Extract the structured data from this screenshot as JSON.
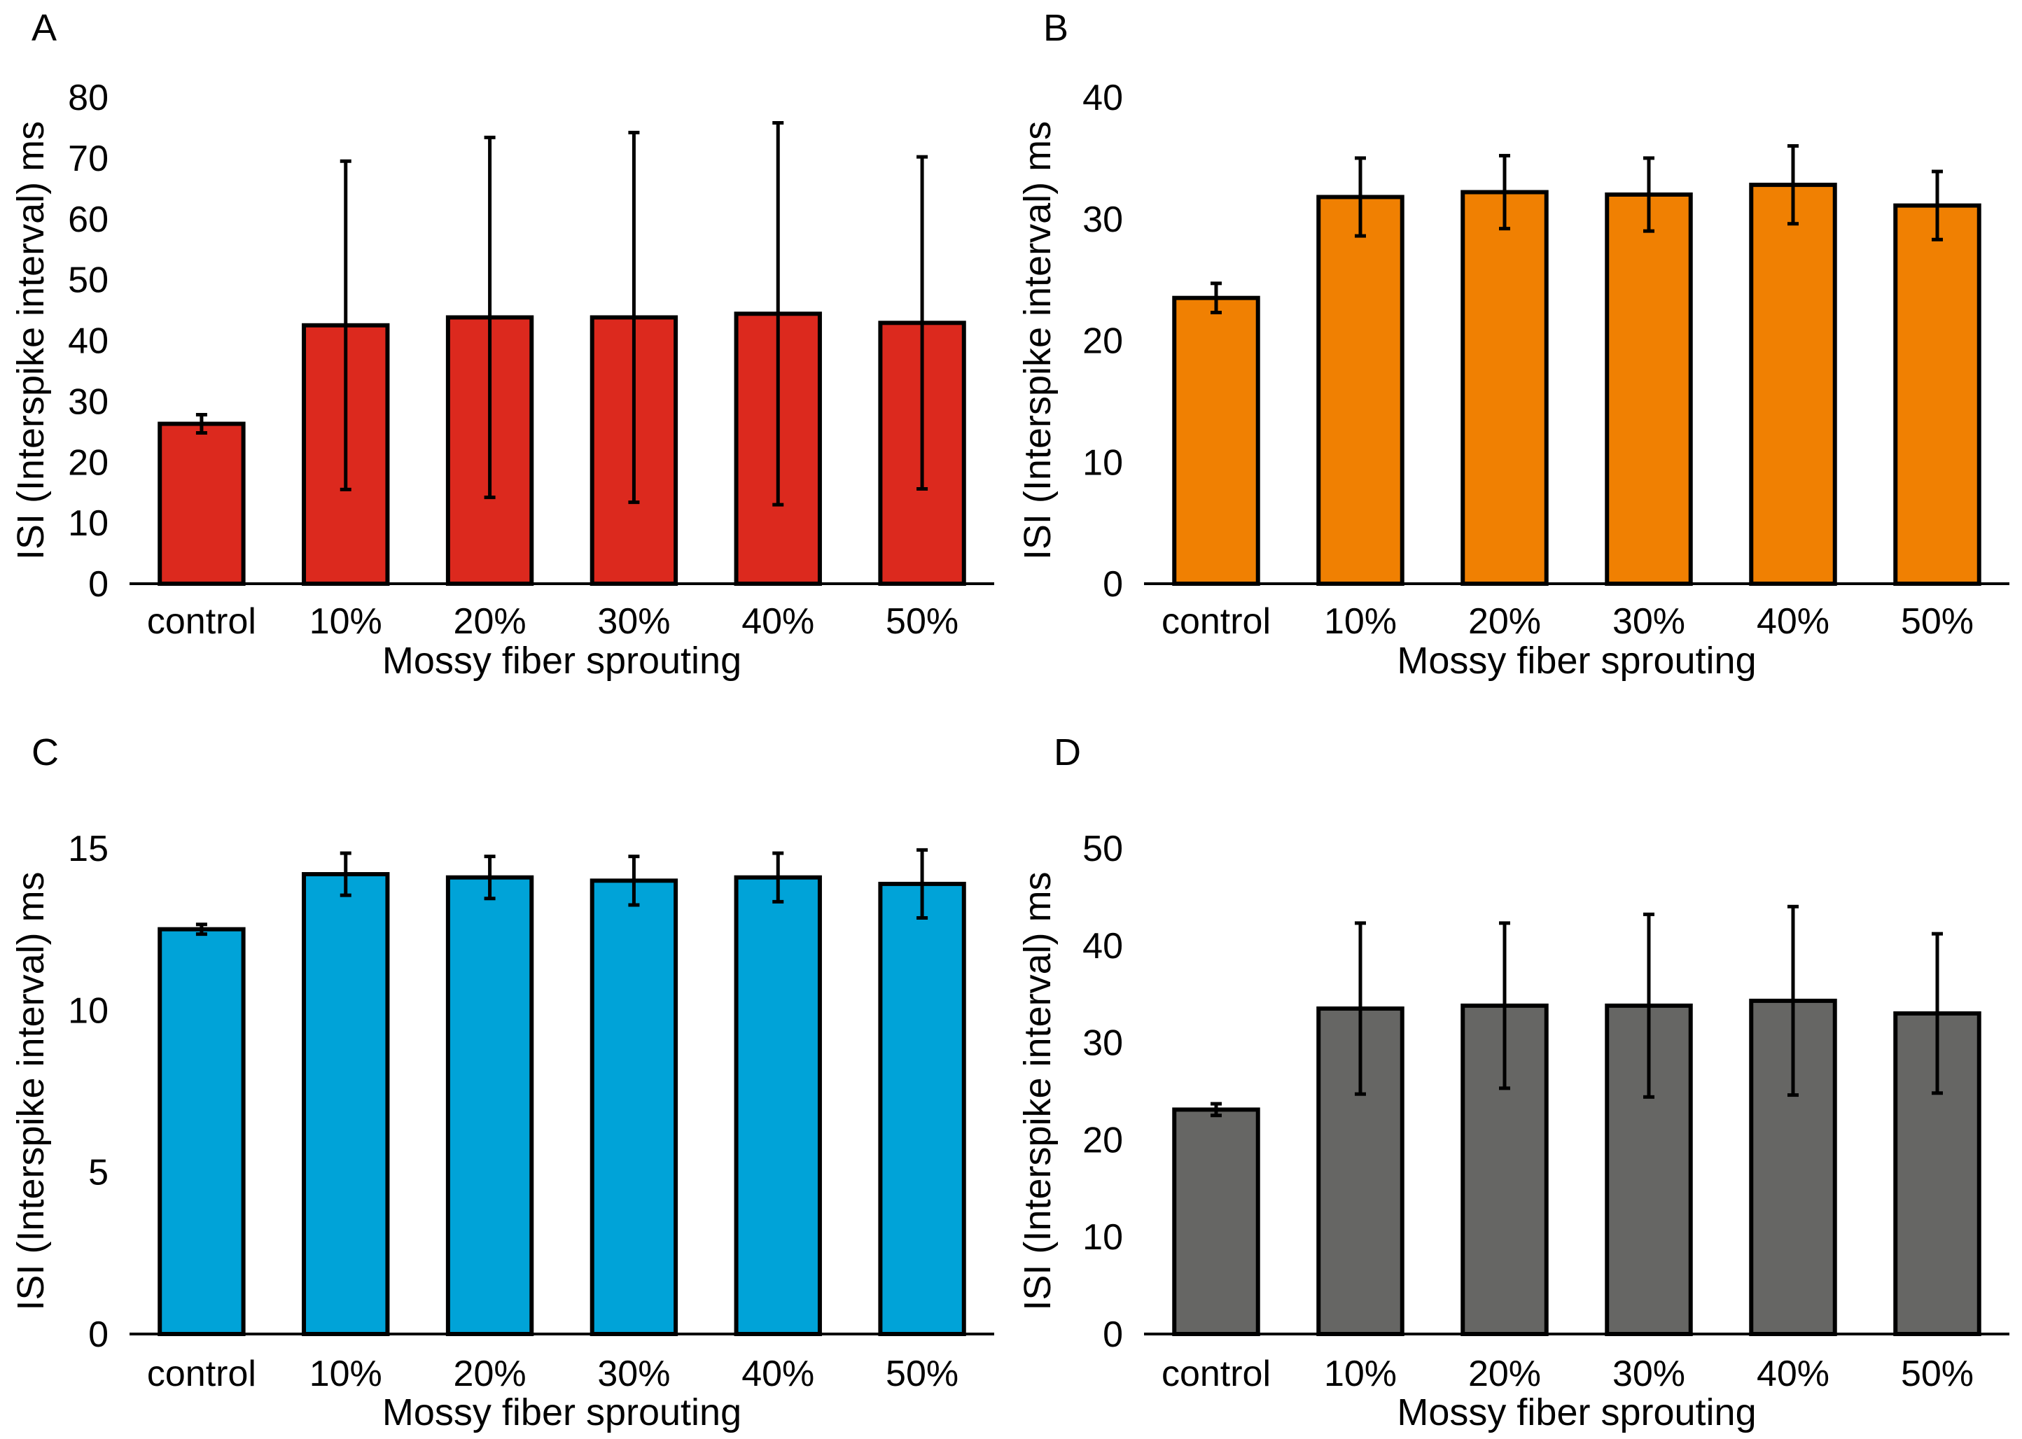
{
  "chart_data": [
    {
      "panel": "A",
      "type": "bar",
      "categories": [
        "control",
        "10%",
        "20%",
        "30%",
        "40%",
        "50%"
      ],
      "values": [
        26.3,
        42.5,
        43.8,
        43.8,
        44.4,
        42.9
      ],
      "errors": [
        1.5,
        27.0,
        29.6,
        30.4,
        31.4,
        27.3
      ],
      "color": "#dc291e",
      "xlabel": "Mossy fiber sprouting",
      "ylabel": "ISI (Interspike interval) ms",
      "ylim": [
        0,
        80
      ],
      "yticks": [
        0,
        10,
        20,
        30,
        40,
        50,
        60,
        70,
        80
      ]
    },
    {
      "panel": "B",
      "type": "bar",
      "categories": [
        "control",
        "10%",
        "20%",
        "30%",
        "40%",
        "50%"
      ],
      "values": [
        23.5,
        31.8,
        32.2,
        32.0,
        32.8,
        31.1
      ],
      "errors": [
        1.2,
        3.2,
        3.0,
        3.0,
        3.2,
        2.8
      ],
      "color": "#f08002",
      "xlabel": "Mossy fiber sprouting",
      "ylabel": "ISI (Interspike interval) ms",
      "ylim": [
        0,
        40
      ],
      "yticks": [
        0,
        10,
        20,
        30,
        40
      ]
    },
    {
      "panel": "C",
      "type": "bar",
      "categories": [
        "control",
        "10%",
        "20%",
        "30%",
        "40%",
        "50%"
      ],
      "values": [
        12.5,
        14.2,
        14.1,
        14.0,
        14.1,
        13.9
      ],
      "errors": [
        0.15,
        0.65,
        0.65,
        0.75,
        0.75,
        1.05
      ],
      "color": "#00a3d8",
      "xlabel": "Mossy fiber sprouting",
      "ylabel": "ISI (Interspike interval) ms",
      "ylim": [
        0,
        15
      ],
      "yticks": [
        0,
        5,
        10,
        15
      ]
    },
    {
      "panel": "D",
      "type": "bar",
      "categories": [
        "control",
        "10%",
        "20%",
        "30%",
        "40%",
        "50%"
      ],
      "values": [
        23.1,
        33.5,
        33.8,
        33.8,
        34.3,
        33.0
      ],
      "errors": [
        0.6,
        8.8,
        8.5,
        9.4,
        9.7,
        8.2
      ],
      "color": "#666664",
      "xlabel": "Mossy fiber sprouting",
      "ylabel": "ISI (Interspike interval) ms",
      "ylim": [
        0,
        50
      ],
      "yticks": [
        0,
        10,
        20,
        30,
        40,
        50
      ]
    }
  ]
}
